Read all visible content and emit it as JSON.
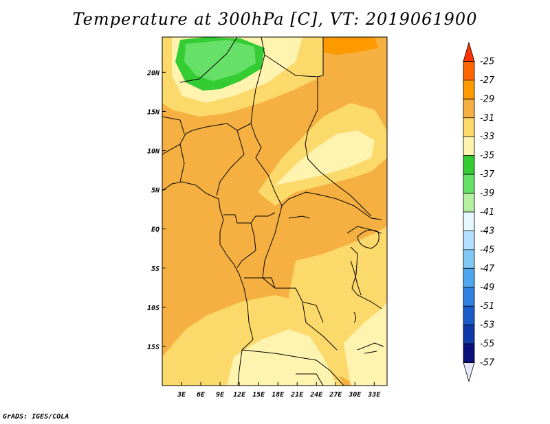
{
  "title": "Temperature at 300hPa [C], VT: 2019061900",
  "credit": "GrADS: IGES/COLA",
  "map": {
    "lon_range": [
      0,
      35
    ],
    "lat_range": [
      -20,
      24.5
    ],
    "lon_ticks": [
      "3E",
      "6E",
      "9E",
      "12E",
      "15E",
      "18E",
      "21E",
      "24E",
      "27E",
      "30E",
      "33E"
    ],
    "lat_ticks": [
      "20N",
      "15N",
      "10N",
      "5N",
      "EQ",
      "5S",
      "10S",
      "15S"
    ],
    "lon_tick_values": [
      3,
      6,
      9,
      12,
      15,
      18,
      21,
      24,
      27,
      30,
      33
    ],
    "lat_tick_values": [
      20,
      15,
      10,
      5,
      0,
      -5,
      -10,
      -15
    ]
  },
  "colorbar": {
    "labels": [
      "-25",
      "-27",
      "-29",
      "-31",
      "-33",
      "-35",
      "-37",
      "-39",
      "-41",
      "-43",
      "-45",
      "-47",
      "-49",
      "-51",
      "-53",
      "-55",
      "-57"
    ],
    "colors": [
      "#ff3300",
      "#ff6600",
      "#ff9900",
      "#f5b041",
      "#fcd96b",
      "#fff3b0",
      "#33cc33",
      "#66e066",
      "#b3f0a0",
      "#e6f8ff",
      "#b3e0ff",
      "#80c8f5",
      "#4da6ee",
      "#2f80e0",
      "#1a5cc8",
      "#0d3aa8",
      "#08107a",
      "#e6e6ff"
    ]
  },
  "fill_colors": {
    "ocean": "#f5b041",
    "light": "#fcd96b",
    "pale": "#fff3b0",
    "green": "#33cc33",
    "green_light": "#66e066",
    "orange": "#ff9900"
  }
}
